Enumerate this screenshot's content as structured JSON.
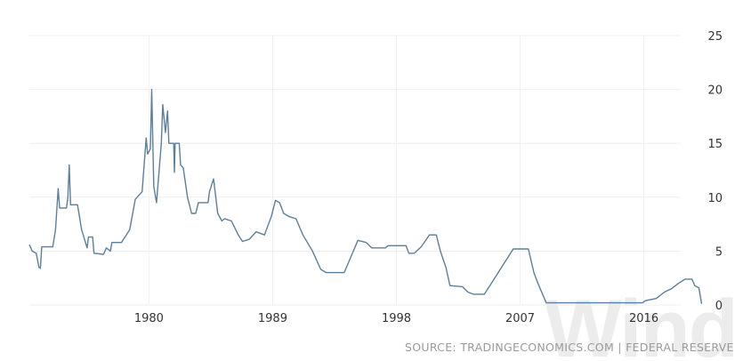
{
  "chart_data": {
    "type": "line",
    "title": "",
    "xlabel": "",
    "ylabel": "",
    "xlim": [
      1971.3,
      2020.3
    ],
    "ylim": [
      0,
      25
    ],
    "x_ticks": [
      "1980",
      "1989",
      "1998",
      "2007",
      "2016"
    ],
    "y_ticks": [
      "0",
      "5",
      "10",
      "15",
      "20",
      "25"
    ],
    "y_axis_side": "right",
    "grid": true,
    "line_color": "#5b7f9c",
    "series": [
      {
        "points": [
          [
            1971.3,
            5.6
          ],
          [
            1971.5,
            5.0
          ],
          [
            1971.8,
            4.8
          ],
          [
            1972.0,
            3.5
          ],
          [
            1972.1,
            3.4
          ],
          [
            1972.2,
            5.4
          ],
          [
            1973.0,
            5.4
          ],
          [
            1973.2,
            7.0
          ],
          [
            1973.4,
            10.8
          ],
          [
            1973.5,
            9.0
          ],
          [
            1974.0,
            9.0
          ],
          [
            1974.1,
            10.0
          ],
          [
            1974.2,
            13.0
          ],
          [
            1974.3,
            9.3
          ],
          [
            1974.8,
            9.3
          ],
          [
            1975.1,
            7.0
          ],
          [
            1975.5,
            5.3
          ],
          [
            1975.6,
            6.3
          ],
          [
            1975.9,
            6.3
          ],
          [
            1976.0,
            4.8
          ],
          [
            1976.7,
            4.7
          ],
          [
            1976.9,
            5.3
          ],
          [
            1977.2,
            5.0
          ],
          [
            1977.3,
            5.8
          ],
          [
            1978.0,
            5.8
          ],
          [
            1978.6,
            7.0
          ],
          [
            1979.0,
            9.8
          ],
          [
            1979.5,
            10.5
          ],
          [
            1979.8,
            15.5
          ],
          [
            1979.9,
            14.0
          ],
          [
            1980.1,
            14.5
          ],
          [
            1980.2,
            20.0
          ],
          [
            1980.35,
            11.0
          ],
          [
            1980.55,
            9.5
          ],
          [
            1980.9,
            15.0
          ],
          [
            1981.0,
            18.6
          ],
          [
            1981.2,
            16.0
          ],
          [
            1981.35,
            18.0
          ],
          [
            1981.45,
            15.0
          ],
          [
            1981.8,
            15.0
          ],
          [
            1981.85,
            12.3
          ],
          [
            1981.9,
            15.0
          ],
          [
            1982.2,
            15.0
          ],
          [
            1982.3,
            13.0
          ],
          [
            1982.5,
            12.7
          ],
          [
            1982.8,
            10.0
          ],
          [
            1983.1,
            8.5
          ],
          [
            1983.4,
            8.5
          ],
          [
            1983.6,
            9.5
          ],
          [
            1984.3,
            9.5
          ],
          [
            1984.4,
            10.5
          ],
          [
            1984.7,
            11.7
          ],
          [
            1985.0,
            8.5
          ],
          [
            1985.3,
            7.8
          ],
          [
            1985.5,
            8.0
          ],
          [
            1986.0,
            7.8
          ],
          [
            1986.5,
            6.5
          ],
          [
            1986.8,
            5.9
          ],
          [
            1987.3,
            6.1
          ],
          [
            1987.8,
            6.8
          ],
          [
            1988.0,
            6.7
          ],
          [
            1988.4,
            6.5
          ],
          [
            1988.9,
            8.2
          ],
          [
            1989.2,
            9.7
          ],
          [
            1989.5,
            9.5
          ],
          [
            1989.8,
            8.5
          ],
          [
            1990.2,
            8.2
          ],
          [
            1990.7,
            8.0
          ],
          [
            1991.2,
            6.5
          ],
          [
            1991.9,
            5.0
          ],
          [
            1992.5,
            3.3
          ],
          [
            1992.9,
            3.0
          ],
          [
            1994.2,
            3.0
          ],
          [
            1994.7,
            4.5
          ],
          [
            1995.2,
            6.0
          ],
          [
            1995.8,
            5.8
          ],
          [
            1996.2,
            5.3
          ],
          [
            1997.2,
            5.3
          ],
          [
            1997.4,
            5.5
          ],
          [
            1998.7,
            5.5
          ],
          [
            1998.9,
            4.8
          ],
          [
            1999.3,
            4.8
          ],
          [
            1999.8,
            5.4
          ],
          [
            2000.4,
            6.5
          ],
          [
            2000.9,
            6.5
          ],
          [
            2001.2,
            5.0
          ],
          [
            2001.6,
            3.5
          ],
          [
            2001.9,
            1.8
          ],
          [
            2002.8,
            1.7
          ],
          [
            2003.2,
            1.2
          ],
          [
            2003.6,
            1.0
          ],
          [
            2004.4,
            1.0
          ],
          [
            2006.5,
            5.2
          ],
          [
            2007.6,
            5.2
          ],
          [
            2008.0,
            3.0
          ],
          [
            2008.3,
            2.0
          ],
          [
            2008.9,
            0.2
          ],
          [
            2015.9,
            0.2
          ],
          [
            2016.1,
            0.4
          ],
          [
            2016.9,
            0.6
          ],
          [
            2017.5,
            1.2
          ],
          [
            2018.0,
            1.5
          ],
          [
            2018.5,
            2.0
          ],
          [
            2019.0,
            2.4
          ],
          [
            2019.5,
            2.4
          ],
          [
            2019.7,
            1.8
          ],
          [
            2020.0,
            1.6
          ],
          [
            2020.2,
            0.1
          ]
        ]
      }
    ]
  },
  "source": "SOURCE: TRADINGECONOMICS.COM | FEDERAL RESERVE",
  "watermark": "Wind"
}
